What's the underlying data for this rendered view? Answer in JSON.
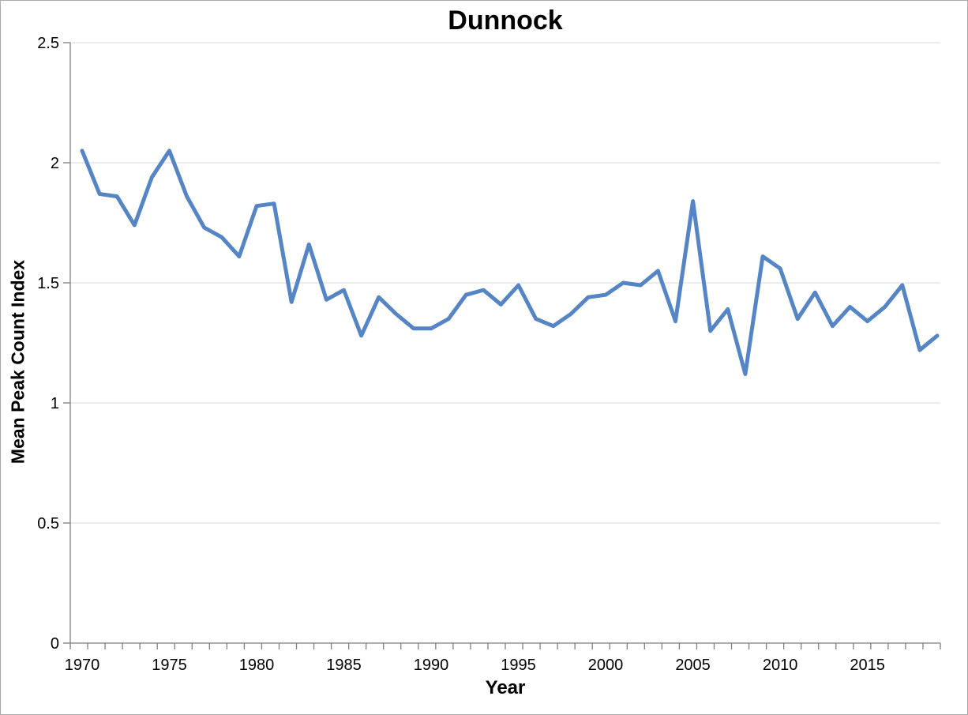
{
  "chart_data": {
    "type": "line",
    "title": "Dunnock",
    "xlabel": "Year",
    "ylabel": "Mean Peak Count Index",
    "x": [
      1970,
      1971,
      1972,
      1973,
      1974,
      1975,
      1976,
      1977,
      1978,
      1979,
      1980,
      1981,
      1982,
      1983,
      1984,
      1985,
      1986,
      1987,
      1988,
      1989,
      1990,
      1991,
      1992,
      1993,
      1994,
      1995,
      1996,
      1997,
      1998,
      1999,
      2000,
      2001,
      2002,
      2003,
      2004,
      2005,
      2006,
      2007,
      2008,
      2009,
      2010,
      2011,
      2012,
      2013,
      2014,
      2015,
      2016,
      2017,
      2018,
      2019
    ],
    "values": [
      2.05,
      1.87,
      1.86,
      1.74,
      1.94,
      2.05,
      1.86,
      1.73,
      1.69,
      1.61,
      1.82,
      1.83,
      1.42,
      1.66,
      1.43,
      1.47,
      1.28,
      1.44,
      1.37,
      1.31,
      1.31,
      1.35,
      1.45,
      1.47,
      1.41,
      1.49,
      1.35,
      1.32,
      1.37,
      1.44,
      1.45,
      1.5,
      1.49,
      1.55,
      1.34,
      1.84,
      1.3,
      1.39,
      1.12,
      1.61,
      1.56,
      1.35,
      1.46,
      1.32,
      1.4,
      1.34,
      1.4,
      1.49,
      1.22,
      1.28
    ],
    "ylim": [
      0,
      2.5
    ],
    "yticks": [
      0,
      0.5,
      1,
      1.5,
      2,
      2.5
    ],
    "ytick_labels": [
      "0",
      "0.5",
      "1",
      "1.5",
      "2",
      "2.5"
    ],
    "xticks": [
      1970,
      1975,
      1980,
      1985,
      1990,
      1995,
      2000,
      2005,
      2010,
      2015
    ],
    "grid": "horizontal",
    "legend": "none",
    "line_color": "#5585C4",
    "gridline_color": "#D9D9D9",
    "axis_color": "#7F7F7F",
    "text_color": "#000000"
  }
}
